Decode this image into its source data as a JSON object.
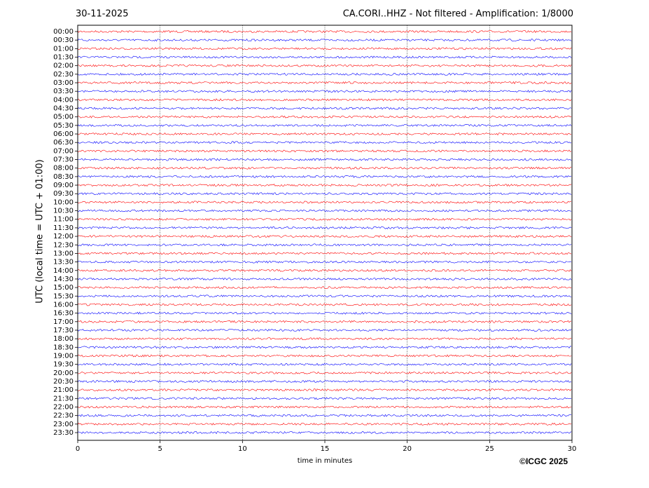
{
  "chart_data": {
    "type": "helicorder",
    "date": "30-11-2025",
    "title": "CA.CORI..HHZ - Not filtered - Amplification: 1/8000",
    "xlabel": "time in minutes",
    "ylabel": "UTC (local time = UTC + 01:00)",
    "categories": [
      "00:00",
      "00:30",
      "01:00",
      "01:30",
      "02:00",
      "02:30",
      "03:00",
      "03:30",
      "04:00",
      "04:30",
      "05:00",
      "05:30",
      "06:00",
      "06:30",
      "07:00",
      "07:30",
      "08:00",
      "08:30",
      "09:00",
      "09:30",
      "10:00",
      "10:30",
      "11:00",
      "11:30",
      "12:00",
      "12:30",
      "13:00",
      "13:30",
      "14:00",
      "14:30",
      "15:00",
      "15:30",
      "16:00",
      "16:30",
      "17:00",
      "17:30",
      "18:00",
      "18:30",
      "19:00",
      "19:30",
      "20:00",
      "20:30",
      "21:00",
      "21:30",
      "22:00",
      "22:30",
      "23:00",
      "23:30"
    ],
    "trace_colors": [
      "#ff0000",
      "#0000ff"
    ],
    "xlim": [
      0,
      30
    ],
    "xticks": [
      0,
      5,
      10,
      15,
      20,
      25,
      30
    ],
    "grid": true,
    "copyright": "©ICGC 2025"
  }
}
